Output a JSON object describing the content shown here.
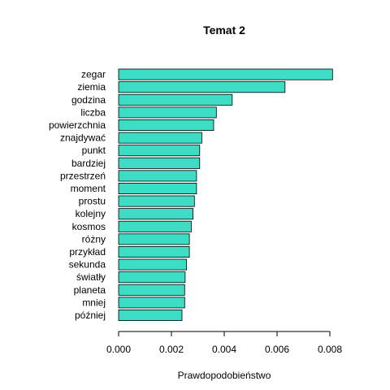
{
  "chart_data": {
    "type": "bar",
    "orientation": "horizontal",
    "title": "Temat 2",
    "xlabel": "Prawdopodobieństwo",
    "ylabel": "",
    "categories": [
      "zegar",
      "ziemia",
      "godzina",
      "liczba",
      "powierzchnia",
      "znajdywać",
      "punkt",
      "bardziej",
      "przestrzeń",
      "moment",
      "prostu",
      "kolejny",
      "kosmos",
      "różny",
      "przykład",
      "sekunda",
      "światły",
      "planeta",
      "mniej",
      "później"
    ],
    "values": [
      0.0081,
      0.0063,
      0.0043,
      0.0037,
      0.0036,
      0.00315,
      0.00307,
      0.00307,
      0.00295,
      0.00295,
      0.00287,
      0.00282,
      0.00275,
      0.00268,
      0.00268,
      0.00257,
      0.00252,
      0.0025,
      0.0025,
      0.0024
    ],
    "xlim": [
      0,
      0.008
    ],
    "xticks": [
      "0.000",
      "0.002",
      "0.004",
      "0.006",
      "0.008"
    ],
    "bar_color": "#3ddcc4",
    "grid": false,
    "legend": "none"
  }
}
